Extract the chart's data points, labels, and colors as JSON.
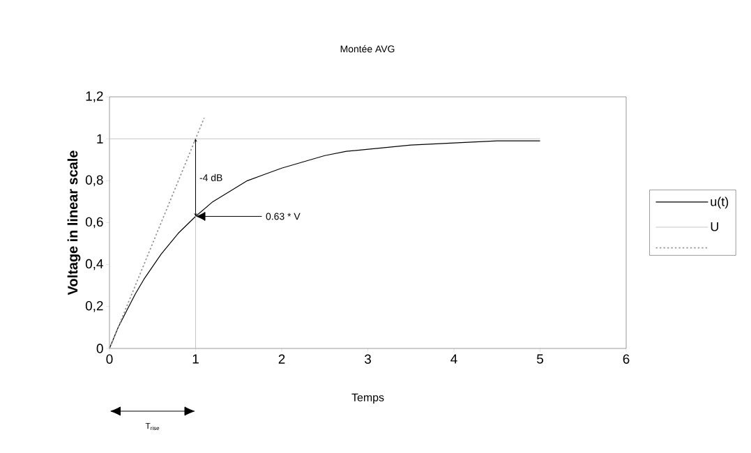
{
  "chart_data": {
    "type": "line",
    "title": "Montée AVG",
    "xlabel": "Temps",
    "ylabel": "Voltage in linear scale",
    "xlim": [
      0,
      6
    ],
    "xticks": [
      0,
      1,
      2,
      3,
      4,
      5,
      6
    ],
    "ylim": [
      0,
      1.2
    ],
    "yticks": [
      0,
      {
        "value": 0.2,
        "label": "0,2"
      },
      {
        "value": 0.4,
        "label": "0,4"
      },
      {
        "value": 0.6,
        "label": "0,6"
      },
      {
        "value": 0.8,
        "label": "0,8"
      },
      1,
      {
        "value": 1.2,
        "label": "1,2"
      }
    ],
    "legend": "right",
    "grid": false,
    "marker": "none",
    "series": [
      {
        "name": "u(t)",
        "color": "#000000",
        "line_style": "solid",
        "x": [
          0,
          0.1,
          0.2,
          0.3,
          0.4,
          0.5,
          0.6,
          0.7,
          0.8,
          0.9,
          1,
          1.2,
          1.4,
          1.6,
          1.8,
          2,
          2.25,
          2.5,
          2.75,
          3,
          3.25,
          3.5,
          3.75,
          4,
          4.25,
          4.5,
          4.75,
          5
        ],
        "values": [
          0,
          0.1,
          0.18,
          0.26,
          0.33,
          0.39,
          0.45,
          0.5,
          0.55,
          0.59,
          0.63,
          0.7,
          0.75,
          0.8,
          0.83,
          0.86,
          0.89,
          0.92,
          0.94,
          0.95,
          0.96,
          0.97,
          0.975,
          0.98,
          0.985,
          0.99,
          0.99,
          0.99
        ]
      },
      {
        "name": "U",
        "color": "#bfbfbf",
        "line_style": "solid",
        "x": [
          0,
          5
        ],
        "values": [
          1,
          1
        ]
      },
      {
        "color": "#999999",
        "line_style": "dotted",
        "x": [
          0,
          1.1
        ],
        "values": [
          0,
          1.1
        ]
      },
      {
        "color": "#bfbfbf",
        "line_style": "solid",
        "x": [
          1,
          1
        ],
        "values": [
          0,
          1
        ]
      }
    ],
    "annotations": [
      "-4 dB",
      "0.63 * V",
      "T$_{rise}$"
    ]
  }
}
